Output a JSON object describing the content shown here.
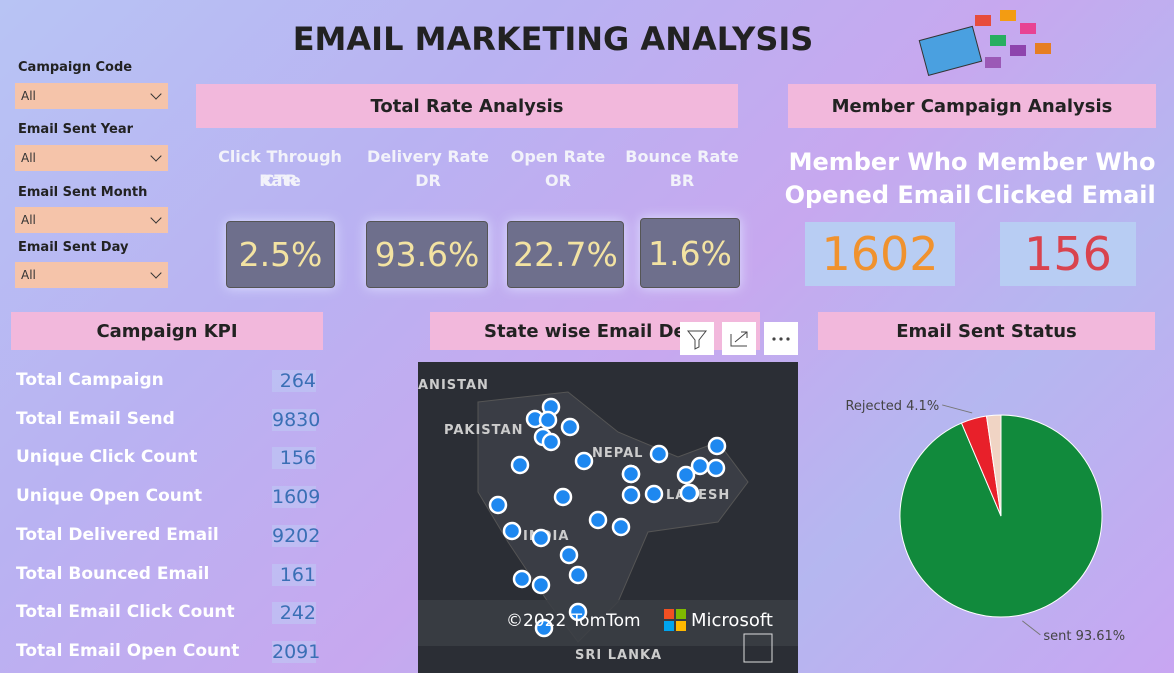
{
  "title": "EMAIL MARKETING ANALYSIS",
  "filters": [
    {
      "label": "Campaign Code",
      "value": "All"
    },
    {
      "label": "Email Sent Year",
      "value": "All"
    },
    {
      "label": "Email Sent Month",
      "value": "All"
    },
    {
      "label": "Email Sent Day",
      "value": "All"
    }
  ],
  "rate_analysis": {
    "title": "Total Rate Analysis",
    "cards": [
      {
        "name": "Click Through Rate",
        "abbr": "CTR",
        "value": "2.5%"
      },
      {
        "name": "Delivery Rate",
        "abbr": "DR",
        "value": "93.6%"
      },
      {
        "name": "Open Rate",
        "abbr": "OR",
        "value": "22.7%"
      },
      {
        "name": "Bounce Rate",
        "abbr": "BR",
        "value": "1.6%"
      }
    ]
  },
  "member_analysis": {
    "title": "Member Campaign Analysis",
    "cards": [
      {
        "label_1": "Member Who",
        "label_2": "Opened Email",
        "value": 1602
      },
      {
        "label_1": "Member Who",
        "label_2": "Clicked Email",
        "value": 156
      }
    ]
  },
  "campaign_kpi": {
    "title": "Campaign KPI",
    "rows": [
      [
        "Total Campaign",
        264
      ],
      [
        "Total Email Send",
        9830
      ],
      [
        "Unique Click Count",
        156
      ],
      [
        "Unique Open Count",
        1609
      ],
      [
        "Total Delivered Email",
        9202
      ],
      [
        "Total Bounced Email",
        161
      ],
      [
        "Total Email Click Count",
        242
      ],
      [
        "Total Email Open Count",
        2091
      ]
    ]
  },
  "map": {
    "title": "State wise Email Deli",
    "labels": [
      "ANISTAN",
      "PAKISTAN",
      "NEPAL",
      "INDIA",
      "LADESH",
      "SRI LANKA"
    ],
    "copyright": "©2022 TomTom",
    "brand": "Microsoft"
  },
  "chart_data": {
    "type": "pie",
    "title": "Email Sent Status",
    "categories": [
      "sent",
      "Rejected",
      null
    ],
    "values": [
      93.61,
      4.1,
      2.29
    ],
    "value_labels": [
      "93.61%",
      "4.1%",
      null
    ],
    "colors": [
      "#118a3c",
      "#e8202a",
      "#f0d4c4"
    ]
  }
}
